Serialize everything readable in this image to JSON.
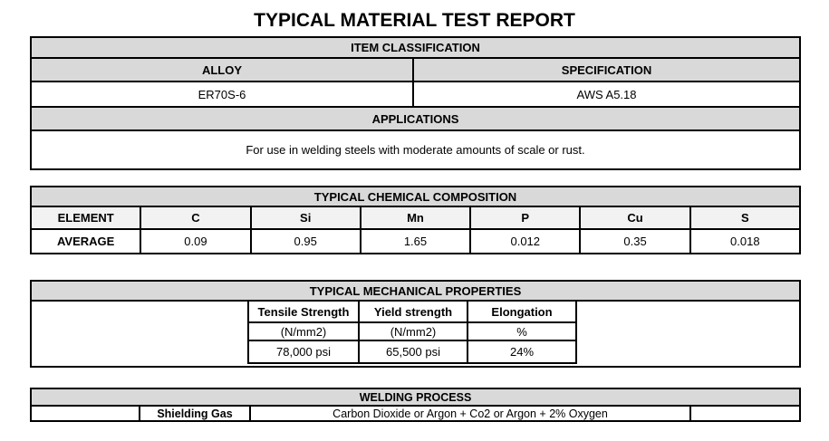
{
  "title": "TYPICAL MATERIAL TEST REPORT",
  "item_classification": {
    "header": "ITEM CLASSIFICATION",
    "alloy_label": "ALLOY",
    "spec_label": "SPECIFICATION",
    "alloy_value": "ER70S-6",
    "spec_value": "AWS A5.18",
    "applications_label": "APPLICATIONS",
    "applications_value": "For use in welding steels with moderate amounts of scale or rust."
  },
  "chemical_composition": {
    "header": "TYPICAL CHEMICAL COMPOSITION",
    "element_label": "ELEMENT",
    "average_label": "AVERAGE",
    "columns": [
      "C",
      "Si",
      "Mn",
      "P",
      "Cu",
      "S"
    ],
    "values": [
      "0.09",
      "0.95",
      "1.65",
      "0.012",
      "0.35",
      "0.018"
    ]
  },
  "mechanical_properties": {
    "header": "TYPICAL MECHANICAL PROPERTIES",
    "columns": [
      {
        "label": "Tensile Strength",
        "unit": "(N/mm2)",
        "value": "78,000 psi"
      },
      {
        "label": "Yield strength",
        "unit": "(N/mm2)",
        "value": "65,500 psi"
      },
      {
        "label": "Elongation",
        "unit": "%",
        "value": "24%"
      }
    ]
  },
  "welding_process": {
    "header": "WELDING PROCESS",
    "shielding_gas_label": "Shielding Gas",
    "shielding_gas_value": "Carbon Dioxide or Argon + Co2 or Argon + 2% Oxygen"
  },
  "colors": {
    "header_bg": "#d9d9d9",
    "subheader_bg": "#f2f2f2",
    "border": "#000000",
    "text": "#000000",
    "page_bg": "#ffffff"
  }
}
